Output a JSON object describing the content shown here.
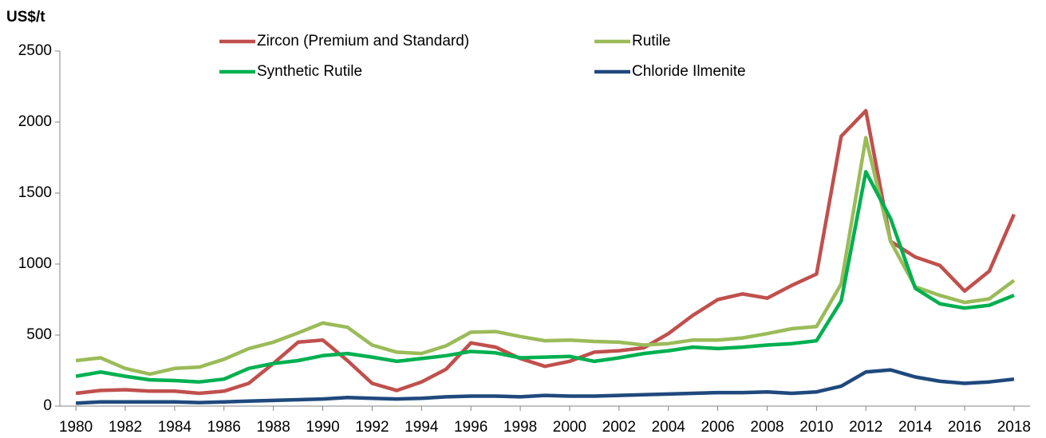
{
  "chart_data": {
    "type": "line",
    "y_label": "US$/t",
    "x": [
      1980,
      1981,
      1982,
      1983,
      1984,
      1985,
      1986,
      1987,
      1988,
      1989,
      1990,
      1991,
      1992,
      1993,
      1994,
      1995,
      1996,
      1997,
      1998,
      1999,
      2000,
      2001,
      2002,
      2003,
      2004,
      2005,
      2006,
      2007,
      2008,
      2009,
      2010,
      2011,
      2012,
      2013,
      2014,
      2015,
      2016,
      2017,
      2018
    ],
    "xlim": [
      1979.35,
      2018.65
    ],
    "xticks": [
      1980,
      1982,
      1984,
      1986,
      1988,
      1990,
      1992,
      1994,
      1996,
      1998,
      2000,
      2002,
      2004,
      2006,
      2008,
      2010,
      2012,
      2014,
      2016,
      2018
    ],
    "ylim": [
      0,
      2500
    ],
    "yticks": [
      0,
      500,
      1000,
      1500,
      2000,
      2500
    ],
    "grid": false,
    "legend": "top",
    "series": [
      {
        "name": "Zircon (Premium and Standard)",
        "color": "#c0504d",
        "values": [
          90,
          110,
          115,
          105,
          105,
          90,
          105,
          160,
          300,
          450,
          465,
          320,
          160,
          110,
          170,
          260,
          445,
          415,
          335,
          280,
          315,
          380,
          390,
          410,
          510,
          640,
          750,
          790,
          760,
          850,
          930,
          1900,
          2080,
          1160,
          1050,
          990,
          810,
          950,
          1350
        ]
      },
      {
        "name": "Rutile",
        "color": "#9bbb59",
        "values": [
          320,
          340,
          265,
          225,
          265,
          275,
          330,
          405,
          450,
          515,
          585,
          555,
          430,
          380,
          370,
          425,
          520,
          525,
          490,
          460,
          465,
          455,
          450,
          430,
          440,
          465,
          465,
          480,
          510,
          545,
          560,
          860,
          1890,
          1160,
          840,
          780,
          730,
          755,
          885
        ]
      },
      {
        "name": "Synthetic Rutile",
        "color": "#00b050",
        "values": [
          210,
          240,
          210,
          185,
          180,
          170,
          190,
          265,
          300,
          320,
          355,
          370,
          345,
          315,
          335,
          355,
          385,
          375,
          340,
          345,
          350,
          315,
          340,
          370,
          390,
          415,
          405,
          415,
          430,
          440,
          460,
          740,
          1650,
          1320,
          830,
          720,
          690,
          710,
          780
        ]
      },
      {
        "name": "Chloride Ilmenite",
        "color": "#1f497d",
        "values": [
          20,
          30,
          30,
          30,
          30,
          25,
          30,
          35,
          40,
          45,
          50,
          60,
          55,
          50,
          55,
          65,
          70,
          70,
          65,
          75,
          70,
          70,
          75,
          80,
          85,
          90,
          95,
          95,
          100,
          90,
          100,
          140,
          240,
          255,
          205,
          175,
          160,
          170,
          190
        ]
      }
    ]
  }
}
